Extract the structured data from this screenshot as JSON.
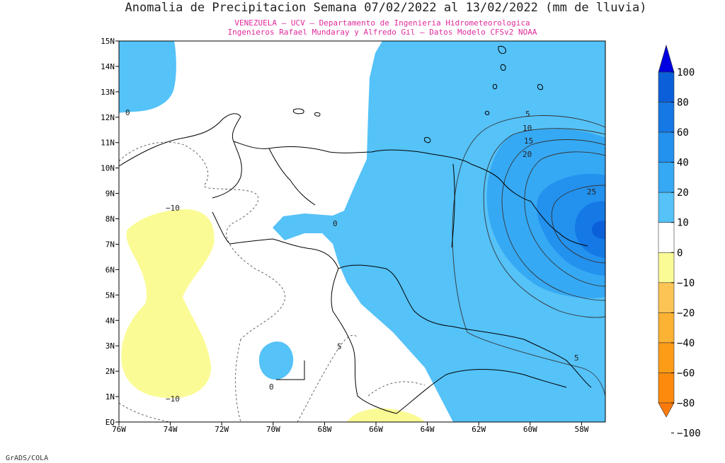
{
  "title": "Anomalia de Precipitacion Semana 07/02/2022 al 13/02/2022 (mm de lluvia)",
  "subtitle_1": "VENEZUELA – UCV – Departamento de Ingenieria Hidrometeorologica",
  "subtitle_2": "Ingenieros Rafael Mundaray y Alfredo Gil – Datos Modelo CFSv2 NOAA",
  "credit": "GrADS/COLA",
  "colors": {
    "pos_10": "#55c2f8",
    "pos_20": "#36a9f4",
    "pos_40": "#2391ee",
    "pos_60": "#1478e5",
    "pos_80": "#0b5fd9",
    "pos_100": "#0000e0",
    "neutral": "#ffffff",
    "neg_10": "#fbfb96",
    "neg_20": "#fbc455",
    "neg_40": "#fcb232",
    "neg_60": "#fc9c17",
    "neg_80": "#fc8a0c",
    "neg_100": "#fc7a0c",
    "border": "#000000",
    "contour": "#333333",
    "subtitle": "#e0299a"
  },
  "y_ticks": [
    "15N",
    "14N",
    "13N",
    "12N",
    "11N",
    "10N",
    "9N",
    "8N",
    "7N",
    "6N",
    "5N",
    "4N",
    "3N",
    "2N",
    "1N",
    "EQ"
  ],
  "x_ticks": [
    "76W",
    "74W",
    "72W",
    "70W",
    "68W",
    "66W",
    "64W",
    "62W",
    "60W",
    "58W"
  ],
  "colorbar_labels": [
    "100",
    "80",
    "60",
    "40",
    "20",
    "10",
    "0",
    "−10",
    "−20",
    "−40",
    "−60",
    "−80",
    "−100"
  ],
  "colorbar_colors": [
    "pos_100",
    "pos_80",
    "pos_60",
    "pos_40",
    "pos_20",
    "pos_10",
    "neutral",
    "neg_10",
    "neg_20",
    "neg_40",
    "neg_60",
    "neg_80",
    "neg_100"
  ],
  "contour_labels": {
    "c0_nw": "0",
    "c0_center": "0",
    "c0_south": "0",
    "c5_north": "5",
    "c10": "10",
    "c15": "15",
    "c20": "20",
    "c25": "25",
    "c5_south": "5",
    "c5_west": "5",
    "cm10_top": "−10",
    "cm10_bottom": "−10"
  }
}
